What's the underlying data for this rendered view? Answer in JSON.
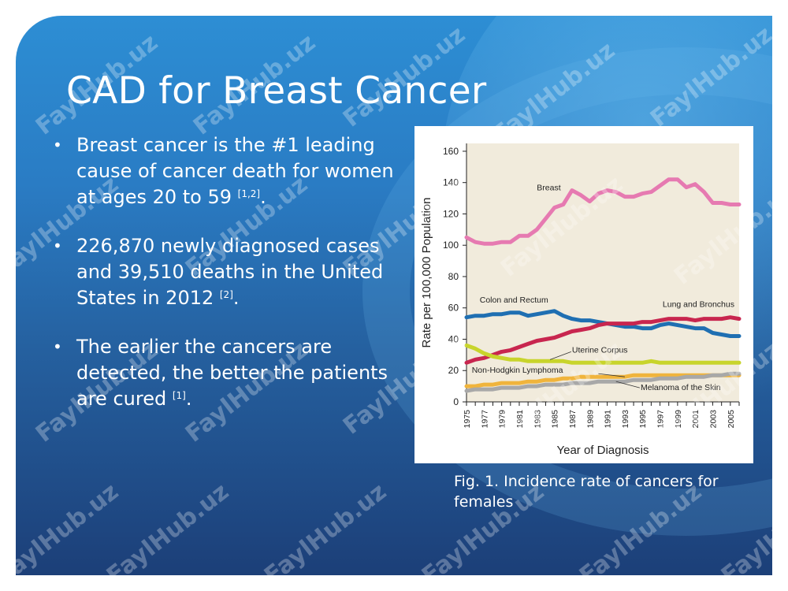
{
  "slide": {
    "title": "CAD for Breast Cancer",
    "bullets": [
      {
        "text": "Breast cancer is the #1 leading cause of cancer death for women at ages 20 to 59 ",
        "ref": "[1,2]",
        "after": "."
      },
      {
        "text": "226,870 newly diagnosed cases and 39,510 deaths in the United States in 2012 ",
        "ref": "[2]",
        "after": "."
      },
      {
        "text": "The earlier the cancers are detected, the better the patients are cured ",
        "ref": "[1]",
        "after": "."
      }
    ],
    "bullet_glyph": "•",
    "caption": "Fig. 1. Incidence rate of cancers for females",
    "watermark": "FaylHub.uz"
  },
  "chart_data": {
    "type": "line",
    "xlabel": "Year of Diagnosis",
    "ylabel": "Rate per 100,000 Population",
    "ylim": [
      0,
      165
    ],
    "yticks": [
      0,
      20,
      40,
      60,
      80,
      100,
      120,
      140,
      160
    ],
    "xlim": [
      1975,
      2006
    ],
    "xticks": [
      1975,
      1977,
      1979,
      1981,
      1983,
      1985,
      1987,
      1989,
      1991,
      1993,
      1995,
      1997,
      1999,
      2001,
      2003,
      2005
    ],
    "x": [
      1975,
      1976,
      1977,
      1978,
      1979,
      1980,
      1981,
      1982,
      1983,
      1984,
      1985,
      1986,
      1987,
      1988,
      1989,
      1990,
      1991,
      1992,
      1993,
      1994,
      1995,
      1996,
      1997,
      1998,
      1999,
      2000,
      2001,
      2002,
      2003,
      2004,
      2005,
      2006
    ],
    "series": [
      {
        "name": "Breast",
        "color": "#e67ab1",
        "values": [
          105,
          102,
          101,
          101,
          102,
          102,
          106,
          106,
          110,
          117,
          124,
          126,
          135,
          132,
          128,
          133,
          135,
          134,
          131,
          131,
          133,
          134,
          138,
          142,
          142,
          137,
          139,
          134,
          127,
          127,
          126,
          126
        ]
      },
      {
        "name": "Colon and Rectum",
        "color": "#1f6fb2",
        "values": [
          54,
          55,
          55,
          56,
          56,
          57,
          57,
          55,
          56,
          57,
          58,
          55,
          53,
          52,
          52,
          51,
          50,
          49,
          48,
          48,
          47,
          47,
          49,
          50,
          49,
          48,
          47,
          47,
          44,
          43,
          42,
          42
        ]
      },
      {
        "name": "Lung and Bronchus",
        "color": "#c8264f",
        "values": [
          25,
          27,
          28,
          30,
          32,
          33,
          35,
          37,
          39,
          40,
          41,
          43,
          45,
          46,
          47,
          49,
          50,
          50,
          50,
          50,
          51,
          51,
          52,
          53,
          53,
          53,
          52,
          53,
          53,
          53,
          54,
          53
        ]
      },
      {
        "name": "Uterine Corpus",
        "color": "#c8d42c",
        "values": [
          36,
          34,
          31,
          29,
          28,
          27,
          27,
          26,
          26,
          26,
          26,
          26,
          25,
          25,
          25,
          25,
          25,
          25,
          25,
          25,
          25,
          26,
          25,
          25,
          25,
          25,
          25,
          25,
          25,
          25,
          25,
          25
        ]
      },
      {
        "name": "Non-Hodgkin Lymphoma",
        "color": "#f0b43c",
        "values": [
          10,
          10,
          11,
          11,
          12,
          12,
          12,
          13,
          13,
          14,
          14,
          15,
          15,
          16,
          16,
          16,
          16,
          16,
          16,
          17,
          17,
          17,
          17,
          17,
          17,
          17,
          17,
          17,
          17,
          17,
          17,
          17
        ]
      },
      {
        "name": "Melanoma of the Skin",
        "color": "#a8a8a8",
        "values": [
          7,
          8,
          8,
          8,
          9,
          9,
          9,
          10,
          10,
          11,
          11,
          11,
          12,
          12,
          12,
          13,
          13,
          13,
          13,
          14,
          14,
          14,
          15,
          15,
          15,
          16,
          16,
          16,
          17,
          17,
          18,
          18
        ]
      }
    ]
  }
}
